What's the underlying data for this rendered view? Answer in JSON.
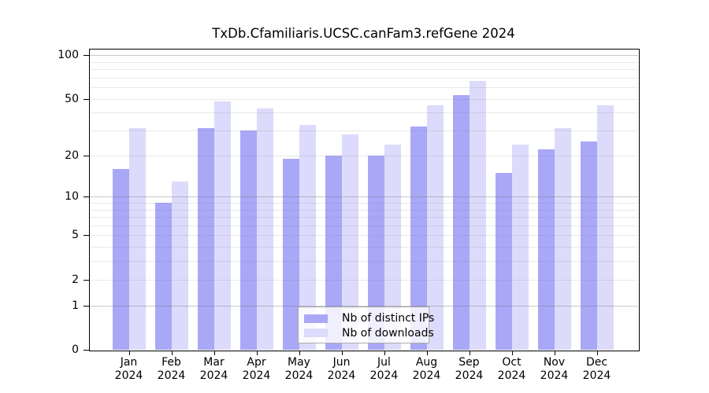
{
  "chart_data": {
    "type": "bar",
    "title": "TxDb.Cfamiliaris.UCSC.canFam3.refGene 2024",
    "categories": [
      "Jan",
      "Feb",
      "Mar",
      "Apr",
      "May",
      "Jun",
      "Jul",
      "Aug",
      "Sep",
      "Oct",
      "Nov",
      "Dec"
    ],
    "year_label": "2024",
    "series": [
      {
        "name": "Nb of distinct IPs",
        "color": "#a9a8f7",
        "values": [
          16,
          9,
          31,
          30,
          19,
          20,
          20,
          32,
          53,
          15,
          22,
          25
        ]
      },
      {
        "name": "Nb of downloads",
        "color": "#dcdbfb",
        "values": [
          31,
          13,
          48,
          43,
          33,
          28,
          24,
          45,
          66,
          24,
          31,
          45
        ]
      }
    ],
    "y_scale": "log1p",
    "ylim": [
      0,
      100
    ],
    "y_ticks": [
      100,
      50,
      20,
      10,
      5,
      2,
      1,
      0
    ],
    "gridlines_minor": [
      2,
      3,
      4,
      5,
      6,
      7,
      8,
      9,
      20,
      30,
      40,
      50,
      60,
      70,
      80,
      90
    ],
    "gridlines_major": [
      1,
      10,
      100
    ],
    "grid": "on",
    "legend_position": "inside-bottom-center",
    "xlabel": "",
    "ylabel": ""
  }
}
